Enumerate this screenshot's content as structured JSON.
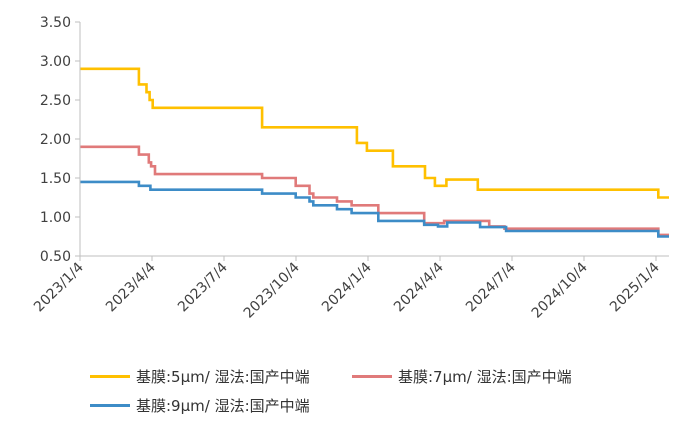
{
  "chart_data": {
    "type": "line",
    "title": "",
    "xlabel": "",
    "ylabel": "",
    "ylim": [
      0.5,
      3.5
    ],
    "yticks": [
      "3.50",
      "3.00",
      "2.50",
      "2.00",
      "1.50",
      "1.00",
      "0.50"
    ],
    "xticks": [
      "2023/1/4",
      "2023/4/4",
      "2023/7/4",
      "2023/10/4",
      "2024/1/4",
      "2024/4/4",
      "2024/7/4",
      "2024/10/4",
      "2025/1/4"
    ],
    "x_days_range": [
      0,
      770
    ],
    "series": [
      {
        "name": "基膜:5μm/ 湿法:国产中端",
        "color": "#FFC000",
        "steps": [
          [
            0,
            2.9
          ],
          [
            77,
            2.7
          ],
          [
            87,
            2.6
          ],
          [
            91,
            2.5
          ],
          [
            95,
            2.4
          ],
          [
            238,
            2.15
          ],
          [
            362,
            1.95
          ],
          [
            375,
            1.85
          ],
          [
            409,
            1.65
          ],
          [
            451,
            1.5
          ],
          [
            464,
            1.4
          ],
          [
            479,
            1.48
          ],
          [
            520,
            1.35
          ],
          [
            756,
            1.25
          ],
          [
            770,
            1.25
          ]
        ]
      },
      {
        "name": "基膜:7μm/ 湿法:国产中端",
        "color": "#E07A7A",
        "steps": [
          [
            0,
            1.9
          ],
          [
            77,
            1.8
          ],
          [
            90,
            1.7
          ],
          [
            93,
            1.65
          ],
          [
            98,
            1.55
          ],
          [
            238,
            1.5
          ],
          [
            282,
            1.4
          ],
          [
            300,
            1.3
          ],
          [
            305,
            1.25
          ],
          [
            336,
            1.2
          ],
          [
            355,
            1.15
          ],
          [
            390,
            1.05
          ],
          [
            450,
            0.92
          ],
          [
            476,
            0.95
          ],
          [
            535,
            0.88
          ],
          [
            555,
            0.85
          ],
          [
            756,
            0.77
          ],
          [
            770,
            0.77
          ]
        ]
      },
      {
        "name": "基膜:9μm/ 湿法:国产中端",
        "color": "#3D8CC7",
        "steps": [
          [
            0,
            1.45
          ],
          [
            77,
            1.4
          ],
          [
            92,
            1.35
          ],
          [
            238,
            1.3
          ],
          [
            282,
            1.25
          ],
          [
            300,
            1.2
          ],
          [
            305,
            1.15
          ],
          [
            336,
            1.1
          ],
          [
            355,
            1.05
          ],
          [
            390,
            0.95
          ],
          [
            450,
            0.9
          ],
          [
            468,
            0.88
          ],
          [
            480,
            0.93
          ],
          [
            523,
            0.87
          ],
          [
            557,
            0.82
          ],
          [
            756,
            0.75
          ],
          [
            770,
            0.75
          ]
        ]
      }
    ]
  }
}
